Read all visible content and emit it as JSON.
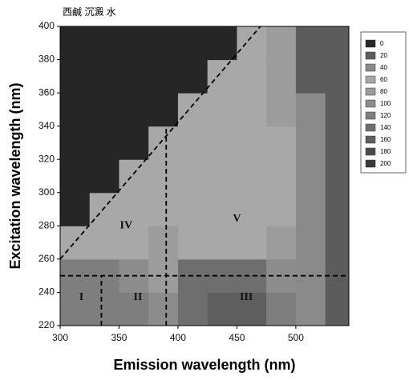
{
  "chart_data": {
    "type": "contour",
    "title": "西鹹 沉澱 水",
    "x_label": "Emission wavelength (nm)",
    "y_label": "Excitation wavelength (nm)",
    "xlim": [
      300,
      545
    ],
    "ylim": [
      220,
      400
    ],
    "xticks": [
      300,
      350,
      400,
      450,
      500
    ],
    "yticks": [
      220,
      240,
      260,
      280,
      300,
      320,
      340,
      360,
      380,
      400
    ],
    "x_edges": [
      300,
      325,
      350,
      375,
      400,
      425,
      450,
      475,
      500,
      525,
      545
    ],
    "y_edges": [
      220,
      240,
      260,
      280,
      300,
      320,
      340,
      360,
      380,
      400
    ],
    "z": [
      [
        120,
        120,
        120,
        100,
        140,
        160,
        160,
        120,
        40,
        20
      ],
      [
        120,
        120,
        100,
        80,
        140,
        140,
        140,
        100,
        40,
        20
      ],
      [
        60,
        60,
        60,
        80,
        60,
        60,
        60,
        80,
        40,
        20
      ],
      [
        0,
        60,
        60,
        60,
        60,
        60,
        60,
        60,
        40,
        20
      ],
      [
        0,
        0,
        60,
        60,
        60,
        60,
        60,
        60,
        40,
        20
      ],
      [
        0,
        0,
        0,
        60,
        60,
        60,
        60,
        60,
        40,
        20
      ],
      [
        0,
        0,
        0,
        0,
        60,
        60,
        60,
        80,
        40,
        20
      ],
      [
        0,
        0,
        0,
        0,
        0,
        60,
        60,
        80,
        20,
        20
      ],
      [
        0,
        0,
        0,
        0,
        0,
        0,
        60,
        80,
        20,
        20
      ]
    ],
    "levels": [
      0,
      20,
      40,
      60,
      80,
      100,
      120,
      140,
      160,
      180,
      200
    ],
    "level_colors": [
      "#262626",
      "#5c5c5c",
      "#8a8a8a",
      "#a8a8a8",
      "#9c9c9c",
      "#8c8c8c",
      "#7e7e7e",
      "#6e6e6e",
      "#5e5e5e",
      "#4a4a4a",
      "#3a3a3a"
    ],
    "lines": [
      {
        "x": [
          300,
          470
        ],
        "y": [
          260,
          400
        ]
      },
      {
        "x": [
          390,
          390
        ],
        "y": [
          220,
          340
        ]
      },
      {
        "x": [
          335,
          335
        ],
        "y": [
          220,
          250
        ]
      },
      {
        "x": [
          300,
          545
        ],
        "y": [
          250,
          250
        ]
      }
    ],
    "annotations": [
      {
        "text": "I",
        "x": 318,
        "y": 237
      },
      {
        "text": "II",
        "x": 366,
        "y": 237
      },
      {
        "text": "III",
        "x": 458,
        "y": 237
      },
      {
        "text": "IV",
        "x": 356,
        "y": 280
      },
      {
        "text": "V",
        "x": 450,
        "y": 284
      }
    ]
  }
}
